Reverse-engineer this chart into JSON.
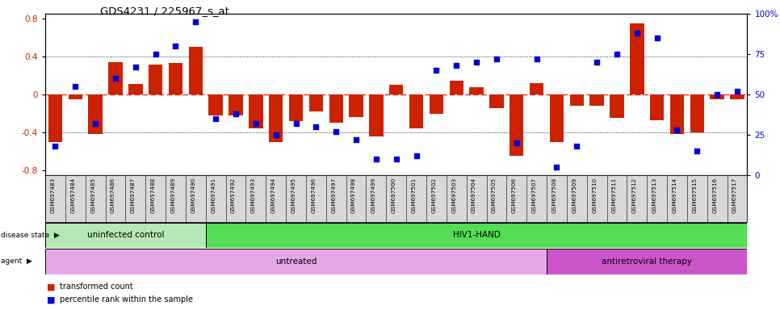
{
  "title": "GDS4231 / 225967_s_at",
  "samples": [
    "GSM697483",
    "GSM697484",
    "GSM697485",
    "GSM697486",
    "GSM697487",
    "GSM697488",
    "GSM697489",
    "GSM697490",
    "GSM697491",
    "GSM697492",
    "GSM697493",
    "GSM697494",
    "GSM697495",
    "GSM697496",
    "GSM697497",
    "GSM697498",
    "GSM697499",
    "GSM697500",
    "GSM697501",
    "GSM697502",
    "GSM697503",
    "GSM697504",
    "GSM697505",
    "GSM697506",
    "GSM697507",
    "GSM697508",
    "GSM697509",
    "GSM697510",
    "GSM697511",
    "GSM697512",
    "GSM697513",
    "GSM697514",
    "GSM697515",
    "GSM697516",
    "GSM697517"
  ],
  "bar_values": [
    -0.5,
    -0.05,
    -0.42,
    0.34,
    0.11,
    0.32,
    0.33,
    0.5,
    -0.22,
    -0.22,
    -0.36,
    -0.5,
    -0.28,
    -0.18,
    -0.3,
    -0.24,
    -0.44,
    0.1,
    -0.36,
    -0.2,
    0.15,
    0.08,
    -0.14,
    -0.65,
    0.12,
    -0.5,
    -0.12,
    -0.12,
    -0.25,
    0.75,
    -0.27,
    -0.42,
    -0.4,
    -0.05,
    -0.05
  ],
  "dot_values": [
    18,
    55,
    32,
    60,
    67,
    75,
    80,
    95,
    35,
    38,
    32,
    25,
    32,
    30,
    27,
    22,
    10,
    10,
    12,
    65,
    68,
    70,
    72,
    20,
    72,
    5,
    18,
    70,
    75,
    88,
    85,
    28,
    15,
    50,
    52
  ],
  "bar_color": "#cc2200",
  "dot_color": "#0000dd",
  "ylim_left": [
    -0.85,
    0.85
  ],
  "ylim_right": [
    0,
    100
  ],
  "yticks_left": [
    -0.8,
    -0.4,
    0.0,
    0.4,
    0.8
  ],
  "ytick_labels_left": [
    "-0.8",
    "-0.4",
    "0",
    "0.4",
    "0.8"
  ],
  "yticks_right": [
    0,
    25,
    50,
    75,
    100
  ],
  "ytick_labels_right": [
    "0",
    "25",
    "50",
    "75",
    "100%"
  ],
  "disease_state_groups": [
    {
      "label": "uninfected control",
      "start": 0,
      "end": 8,
      "color": "#b5e8b5"
    },
    {
      "label": "HIV1-HAND",
      "start": 8,
      "end": 35,
      "color": "#55dd55"
    }
  ],
  "agent_groups": [
    {
      "label": "untreated",
      "start": 0,
      "end": 25,
      "color": "#e8a8e8"
    },
    {
      "label": "antiretroviral therapy",
      "start": 25,
      "end": 35,
      "color": "#cc55cc"
    }
  ],
  "legend_bar_label": "transformed count",
  "legend_dot_label": "percentile rank within the sample",
  "label_disease_state": "disease state",
  "label_agent": "agent",
  "xtick_bg": "#d8d8d8"
}
